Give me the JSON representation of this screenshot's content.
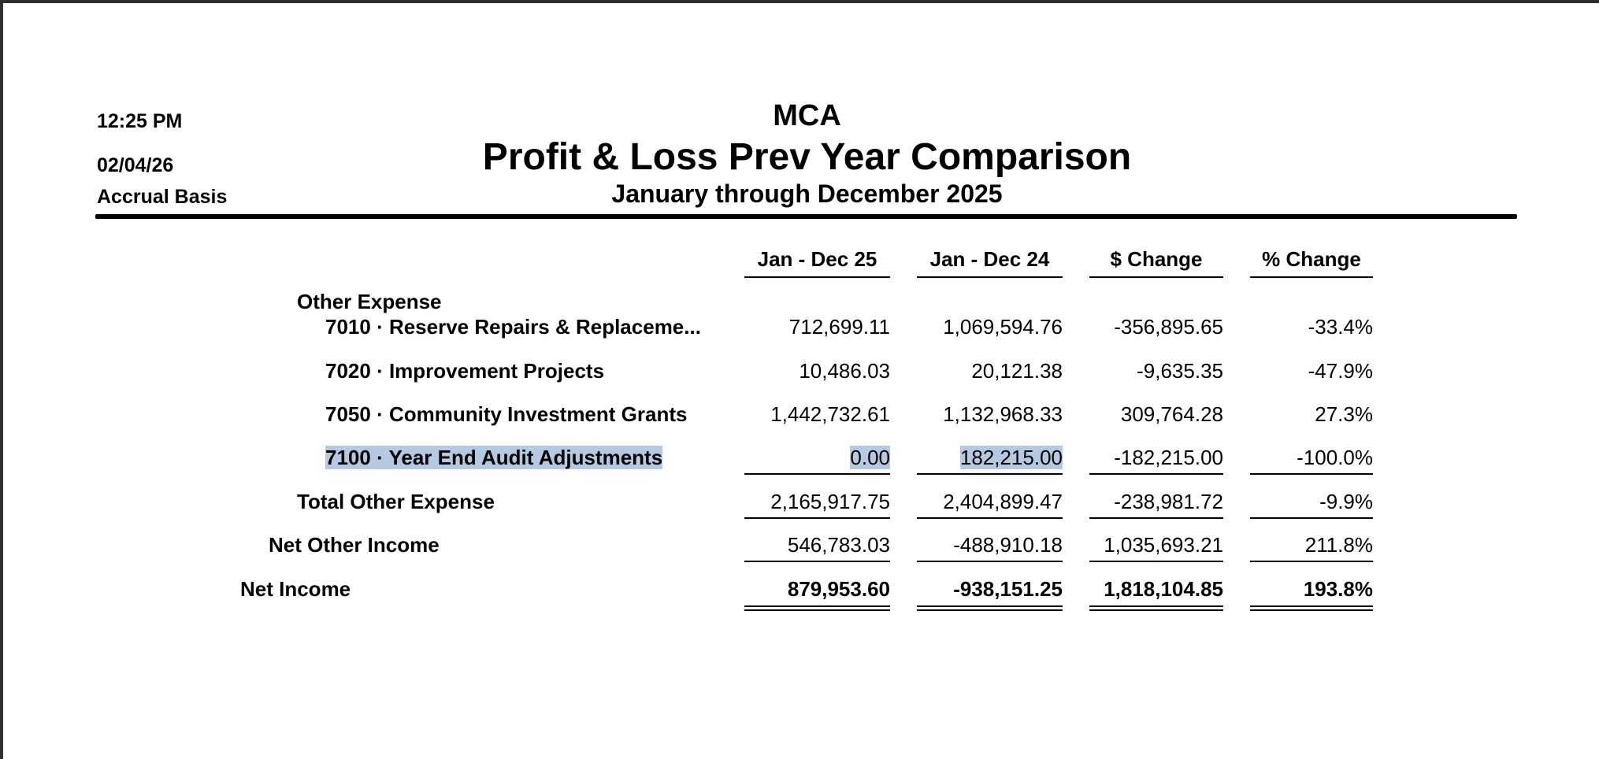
{
  "report": {
    "time": "12:25 PM",
    "date": "02/04/26",
    "basis": "Accrual Basis",
    "company": "MCA",
    "title": "Profit & Loss Prev Year Comparison",
    "period": "January through December 2025"
  },
  "columns": [
    "Jan - Dec 25",
    "Jan - Dec 24",
    "$ Change",
    "% Change"
  ],
  "section": {
    "label": "Other Expense"
  },
  "rows": [
    {
      "label": "7010 · Reserve Repairs & Replaceme...",
      "values": [
        "712,699.11",
        "1,069,594.76",
        "-356,895.65",
        "-33.4%"
      ]
    },
    {
      "label": "7020 · Improvement Projects",
      "values": [
        "10,486.03",
        "20,121.38",
        "-9,635.35",
        "-47.9%"
      ]
    },
    {
      "label": "7050 · Community Investment Grants",
      "values": [
        "1,442,732.61",
        "1,132,968.33",
        "309,764.28",
        "27.3%"
      ]
    },
    {
      "label": "7100 · Year End Audit Adjustments",
      "values": [
        "0.00",
        "182,215.00",
        "-182,215.00",
        "-100.0%"
      ]
    }
  ],
  "total_other_expense": {
    "label": "Total Other Expense",
    "values": [
      "2,165,917.75",
      "2,404,899.47",
      "-238,981.72",
      "-9.9%"
    ]
  },
  "net_other_income": {
    "label": "Net Other Income",
    "values": [
      "546,783.03",
      "-488,910.18",
      "1,035,693.21",
      "211.8%"
    ]
  },
  "net_income": {
    "label": "Net Income",
    "values": [
      "879,953.60",
      "-938,151.25",
      "1,818,104.85",
      "193.8%"
    ]
  }
}
